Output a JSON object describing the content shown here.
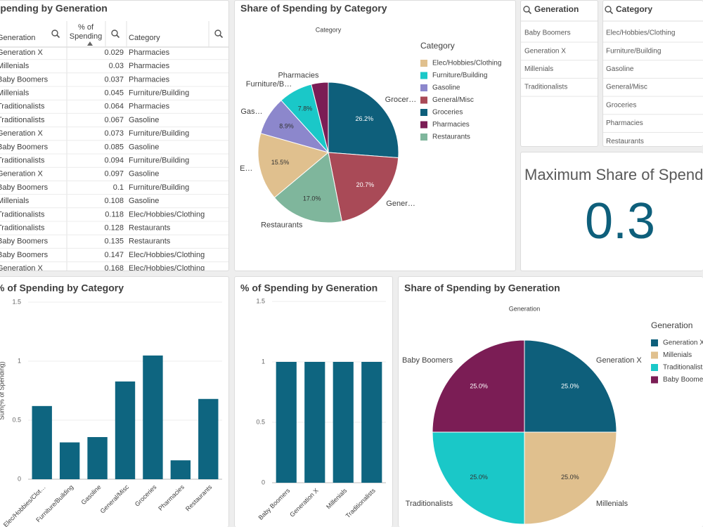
{
  "table": {
    "title": "Spending by Generation",
    "columns": [
      "Generation",
      "% of Spending",
      "Category"
    ],
    "rows": [
      [
        "Generation X",
        0.029,
        "Pharmacies"
      ],
      [
        "Millenials",
        0.03,
        "Pharmacies"
      ],
      [
        "Baby Boomers",
        0.037,
        "Pharmacies"
      ],
      [
        "Millenials",
        0.045,
        "Furniture/Building"
      ],
      [
        "Traditionalists",
        0.064,
        "Pharmacies"
      ],
      [
        "Traditionalists",
        0.067,
        "Gasoline"
      ],
      [
        "Generation X",
        0.073,
        "Furniture/Building"
      ],
      [
        "Baby Boomers",
        0.085,
        "Gasoline"
      ],
      [
        "Traditionalists",
        0.094,
        "Furniture/Building"
      ],
      [
        "Generation X",
        0.097,
        "Gasoline"
      ],
      [
        "Baby Boomers",
        0.1,
        "Furniture/Building"
      ],
      [
        "Millenials",
        0.108,
        "Gasoline"
      ],
      [
        "Traditionalists",
        0.118,
        "Elec/Hobbies/Clothing"
      ],
      [
        "Traditionalists",
        0.128,
        "Restaurants"
      ],
      [
        "Baby Boomers",
        0.135,
        "Restaurants"
      ],
      [
        "Baby Boomers",
        0.147,
        "Elec/Hobbies/Clothing"
      ],
      [
        "Generation X",
        0.168,
        "Elec/Hobbies/Clothing"
      ]
    ]
  },
  "filters": [
    {
      "title": "Generation",
      "items": [
        "Baby Boomers",
        "Generation X",
        "Millenials",
        "Traditionalists"
      ]
    },
    {
      "title": "Category",
      "items": [
        "Elec/Hobbies/Clothing",
        "Furniture/Building",
        "Gasoline",
        "General/Misc",
        "Groceries",
        "Pharmacies",
        "Restaurants"
      ]
    }
  ],
  "kpi": {
    "title": "Maximum Share of Spending",
    "value": 0.3
  },
  "chart_data": [
    {
      "type": "pie",
      "title": "Share of Spending by Category",
      "subtitle": "Category",
      "legend_title": "Category",
      "legend": [
        {
          "name": "Elec/Hobbies/Clothing",
          "color": "#e0c08e"
        },
        {
          "name": "Furniture/Building",
          "color": "#1ac8c8"
        },
        {
          "name": "Gasoline",
          "color": "#8c87cc"
        },
        {
          "name": "General/Misc",
          "color": "#a94a57"
        },
        {
          "name": "Groceries",
          "color": "#0e5f7b"
        },
        {
          "name": "Pharmacies",
          "color": "#7b1d55"
        },
        {
          "name": "Restaurants",
          "color": "#7fb69c"
        }
      ],
      "labels": [
        "Grocer…",
        "Gener…",
        "Restaurants",
        "E…",
        "Gas…",
        "Furniture/B…",
        "Pharmacies"
      ],
      "values": [
        26.2,
        20.7,
        17.0,
        15.5,
        8.9,
        7.8,
        3.9
      ],
      "value_labels": [
        "26.2%",
        "20.7%",
        "17.0%",
        "15.5%",
        "8.9%",
        "7.8%",
        null
      ],
      "colors": [
        "#0e5f7b",
        "#a94a57",
        "#7fb69c",
        "#e0c08e",
        "#8c87cc",
        "#1ac8c8",
        "#7b1d55"
      ]
    },
    {
      "type": "bar",
      "title": "% of Spending by Category",
      "y_label": "Sum(% of Spending)",
      "categories": [
        "Elec/Hobbies/Clot…",
        "Furniture/Building",
        "Gasoline",
        "General/Misc",
        "Groceries",
        "Pharmacies",
        "Restaurants"
      ],
      "values": [
        0.62,
        0.312,
        0.357,
        0.828,
        1.048,
        0.16,
        0.68
      ],
      "color": "#0e6580",
      "ylim": [
        0,
        1.5
      ],
      "yticks": [
        0,
        0.5,
        1,
        1.5
      ],
      "grid": true
    },
    {
      "type": "bar",
      "title": "% of Spending by Generation",
      "categories": [
        "Baby Boomers",
        "Generation X",
        "Millenials",
        "Traditionalists"
      ],
      "values": [
        1,
        1,
        1,
        1
      ],
      "color": "#0e6580",
      "ylim": [
        0,
        1.5
      ],
      "yticks": [
        0,
        0.5,
        1,
        1.5
      ],
      "grid": true
    },
    {
      "type": "pie",
      "title": "Share of Spending by Generation",
      "subtitle": "Generation",
      "legend_title": "Generation",
      "legend": [
        {
          "name": "Generation X",
          "color": "#0e5f7b"
        },
        {
          "name": "Millenials",
          "color": "#e0c08e"
        },
        {
          "name": "Traditionalists",
          "color": "#1ac8c8"
        },
        {
          "name": "Baby Boomers",
          "color": "#7b1d55"
        }
      ],
      "labels": [
        "Generation X",
        "Millenials",
        "Traditionalists",
        "Baby Boomers"
      ],
      "values": [
        25,
        25,
        25,
        25
      ],
      "value_labels": [
        "25.0%",
        "25.0%",
        "25.0%",
        "25.0%"
      ],
      "colors": [
        "#0e5f7b",
        "#e0c08e",
        "#1ac8c8",
        "#7b1d55"
      ]
    }
  ]
}
